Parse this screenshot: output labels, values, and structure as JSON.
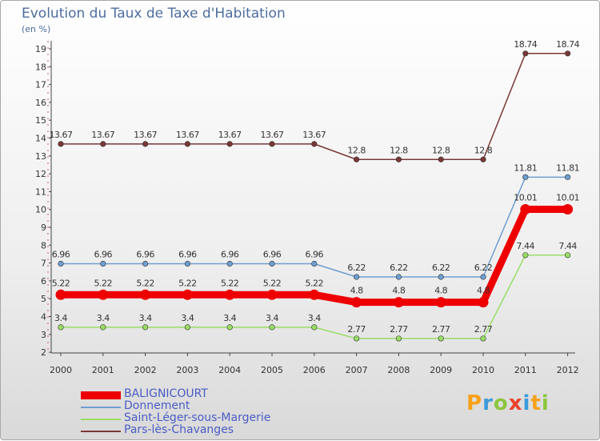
{
  "title": "Evolution du Taux de Taxe d'Habitation",
  "unit_label": "(en %)",
  "logo": {
    "letters": [
      "P",
      "r",
      "o",
      "x",
      "i",
      "t",
      "i"
    ],
    "colors": [
      "#f7a11a",
      "#3d9bd8",
      "#8cc63f",
      "#e8432d",
      "#3d9bd8",
      "#f7a11a",
      "#8cc63f"
    ]
  },
  "chart_data": {
    "type": "line",
    "title": "Evolution du Taux de Taxe d'Habitation",
    "ylabel": "(en %)",
    "xlabel": "",
    "categories": [
      "2000",
      "2001",
      "2002",
      "2003",
      "2004",
      "2005",
      "2006",
      "2007",
      "2008",
      "2009",
      "2010",
      "2011",
      "2012"
    ],
    "ylim": [
      2,
      19.5
    ],
    "yticks": [
      "2",
      "3",
      "4",
      "5",
      "6",
      "7",
      "8",
      "9",
      "10",
      "11",
      "12",
      "13",
      "14",
      "15",
      "16",
      "17",
      "18",
      "19"
    ],
    "grid": false,
    "legend_position": "bottom-left",
    "series": [
      {
        "name": "BALIGNICOURT",
        "color": "#ee0000",
        "values": [
          5.22,
          5.22,
          5.22,
          5.22,
          5.22,
          5.22,
          5.22,
          4.8,
          4.8,
          4.8,
          4.8,
          10.01,
          10.01
        ],
        "labels": [
          "5.22",
          "5.22",
          "5.22",
          "5.22",
          "5.22",
          "5.22",
          "5.22",
          "4.8",
          "4.8",
          "4.8",
          "4.8",
          "10.01",
          "10.01"
        ]
      },
      {
        "name": "Donnement",
        "color": "#6f9ed0",
        "values": [
          6.96,
          6.96,
          6.96,
          6.96,
          6.96,
          6.96,
          6.96,
          6.22,
          6.22,
          6.22,
          6.22,
          11.81,
          11.81
        ],
        "labels": [
          "6.96",
          "6.96",
          "6.96",
          "6.96",
          "6.96",
          "6.96",
          "6.96",
          "6.22",
          "6.22",
          "6.22",
          "6.22",
          "11.81",
          "11.81"
        ]
      },
      {
        "name": "Saint-Léger-sous-Margerie",
        "color": "#99dd66",
        "values": [
          3.4,
          3.4,
          3.4,
          3.4,
          3.4,
          3.4,
          3.4,
          2.77,
          2.77,
          2.77,
          2.77,
          7.44,
          7.44
        ],
        "labels": [
          "3.4",
          "3.4",
          "3.4",
          "3.4",
          "3.4",
          "3.4",
          "3.4",
          "2.77",
          "2.77",
          "2.77",
          "2.77",
          "7.44",
          "7.44"
        ]
      },
      {
        "name": "Pars-lès-Chavanges",
        "color": "#7a3737",
        "values": [
          13.67,
          13.67,
          13.67,
          13.67,
          13.67,
          13.67,
          13.67,
          12.8,
          12.8,
          12.8,
          12.8,
          18.74,
          18.74
        ],
        "labels": [
          "13.67",
          "13.67",
          "13.67",
          "13.67",
          "13.67",
          "13.67",
          "13.67",
          "12.8",
          "12.8",
          "12.8",
          "12.8",
          "18.74",
          "18.74"
        ]
      }
    ]
  }
}
